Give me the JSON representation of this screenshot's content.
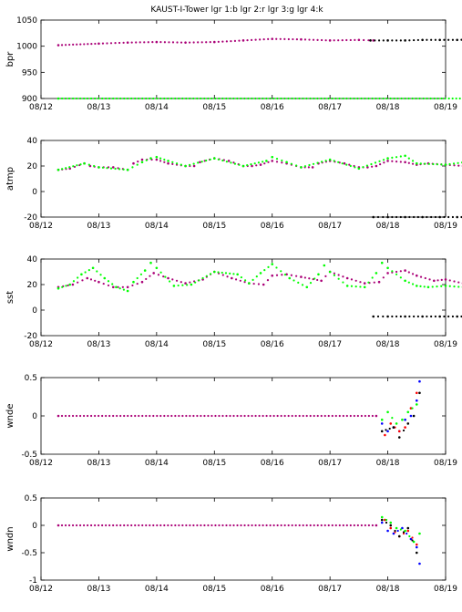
{
  "figure_title": "KAUST-I-Tower  lgr 1:b lgr 2:r lgr 3:g lgr 4:k",
  "logger_colors": {
    "b": "#0000ff",
    "r": "#ff0000",
    "g": "#00ff00",
    "k": "#000000",
    "m": "#aa0077"
  },
  "chart_data": [
    {
      "type": "scatter",
      "ylabel": "bpr",
      "xlim": [
        "08/12",
        "08/19"
      ],
      "ylim": [
        900,
        1050
      ],
      "xticks": [
        "08/12",
        "08/13",
        "08/14",
        "08/15",
        "08/16",
        "08/17",
        "08/18",
        "08/19"
      ],
      "yticks": [
        900,
        950,
        1000,
        1050
      ],
      "series": [
        {
          "color": "m",
          "x": [
            0.3,
            1.0,
            1.5,
            2.0,
            2.5,
            3.0,
            3.5,
            4.0,
            4.5,
            5.0,
            5.5,
            5.75
          ],
          "y": [
            1002,
            1005,
            1007,
            1008,
            1007,
            1008,
            1011,
            1014,
            1013,
            1011,
            1012,
            1011
          ]
        },
        {
          "color": "k",
          "x": [
            5.7,
            6.0,
            6.3,
            6.6,
            6.9,
            7.2,
            7.5
          ],
          "y": [
            1011,
            1011,
            1011,
            1012,
            1012,
            1012,
            1013
          ]
        },
        {
          "color": "g",
          "x": [
            0.3,
            7.5
          ],
          "y": [
            900,
            900
          ]
        }
      ]
    },
    {
      "type": "scatter",
      "ylabel": "atmp",
      "xlim": [
        "08/12",
        "08/19"
      ],
      "ylim": [
        -20,
        40
      ],
      "xticks": [
        "08/12",
        "08/13",
        "08/14",
        "08/15",
        "08/16",
        "08/17",
        "08/18",
        "08/19"
      ],
      "yticks": [
        -20,
        0,
        20,
        40
      ],
      "series": [
        {
          "color": "m",
          "x": [
            0.3,
            0.5,
            0.75,
            0.85,
            1.0,
            1.25,
            1.5,
            1.6,
            1.75,
            2.0,
            2.2,
            2.5,
            2.65,
            2.75,
            3.0,
            3.25,
            3.5,
            3.65,
            3.8,
            4.0,
            4.25,
            4.5,
            4.7,
            4.8,
            5.0,
            5.25,
            5.5,
            5.65,
            5.8,
            6.0,
            6.3,
            6.5,
            6.7,
            7.0,
            7.3,
            7.5
          ],
          "y": [
            17,
            18,
            22,
            20,
            19,
            19,
            17,
            22,
            25,
            25,
            22,
            20,
            20,
            23,
            26,
            24,
            20,
            20,
            21,
            24,
            22,
            19,
            19,
            22,
            24,
            22,
            19,
            19,
            20,
            24,
            23,
            21,
            22,
            21,
            20,
            23
          ]
        },
        {
          "color": "g",
          "x": [
            0.3,
            0.75,
            1.0,
            1.5,
            1.75,
            1.9,
            2.0,
            2.2,
            2.5,
            3.0,
            3.5,
            3.9,
            4.0,
            4.25,
            4.5,
            5.0,
            5.5,
            6.0,
            6.3,
            6.5,
            7.0,
            7.5
          ],
          "y": [
            17,
            22,
            19,
            17,
            23,
            26,
            27,
            24,
            20,
            26,
            20,
            24,
            27,
            23,
            19,
            25,
            18,
            26,
            28,
            22,
            21,
            24
          ]
        },
        {
          "color": "k",
          "x": [
            5.75,
            6.0,
            6.3,
            6.6,
            6.9,
            7.2,
            7.5
          ],
          "y": [
            -20,
            -20,
            -20,
            -20,
            -20,
            -20,
            -20
          ]
        }
      ]
    },
    {
      "type": "scatter",
      "ylabel": "sst",
      "xlim": [
        "08/12",
        "08/19"
      ],
      "ylim": [
        -20,
        40
      ],
      "xticks": [
        "08/12",
        "08/13",
        "08/14",
        "08/15",
        "08/16",
        "08/17",
        "08/18",
        "08/19"
      ],
      "yticks": [
        -20,
        0,
        20,
        40
      ],
      "series": [
        {
          "color": "m",
          "x": [
            0.3,
            0.55,
            0.8,
            1.0,
            1.25,
            1.5,
            1.75,
            1.95,
            2.2,
            2.5,
            2.8,
            3.0,
            3.3,
            3.6,
            3.85,
            4.0,
            4.25,
            4.5,
            4.85,
            5.0,
            5.3,
            5.6,
            5.85,
            6.0,
            6.3,
            6.5,
            6.8,
            7.0,
            7.3,
            7.5
          ],
          "y": [
            18,
            20,
            25,
            22,
            18,
            18,
            22,
            29,
            25,
            21,
            24,
            30,
            25,
            21,
            20,
            27,
            28,
            26,
            23,
            30,
            25,
            21,
            22,
            29,
            31,
            27,
            23,
            24,
            21,
            22
          ]
        },
        {
          "color": "g",
          "x": [
            0.3,
            0.5,
            0.7,
            0.9,
            1.1,
            1.3,
            1.5,
            1.6,
            1.8,
            1.9,
            2.0,
            2.3,
            2.6,
            3.0,
            3.4,
            3.6,
            3.8,
            4.0,
            4.3,
            4.6,
            4.8,
            4.9,
            5.0,
            5.3,
            5.6,
            5.8,
            5.9,
            6.0,
            6.3,
            6.5,
            6.7,
            7.0,
            7.3,
            7.5
          ],
          "y": [
            17,
            20,
            28,
            33,
            25,
            18,
            15,
            22,
            31,
            37,
            33,
            19,
            20,
            30,
            28,
            21,
            29,
            36,
            25,
            18,
            28,
            35,
            30,
            19,
            18,
            29,
            37,
            33,
            23,
            19,
            18,
            19,
            18,
            22
          ]
        },
        {
          "color": "k",
          "x": [
            5.75,
            6.0,
            6.3,
            6.6,
            6.9,
            7.2,
            7.5
          ],
          "y": [
            -5,
            -5,
            -5,
            -5,
            -5,
            -5,
            -5
          ]
        }
      ]
    },
    {
      "type": "scatter",
      "ylabel": "wnde",
      "xlim": [
        "08/12",
        "08/19"
      ],
      "ylim": [
        -0.5,
        0.5
      ],
      "xticks": [
        "08/12",
        "08/13",
        "08/14",
        "08/15",
        "08/16",
        "08/17",
        "08/18",
        "08/19"
      ],
      "yticks": [
        -0.5,
        0,
        0.5
      ],
      "series": [
        {
          "color": "m",
          "x": [
            0.3,
            5.8
          ],
          "y": [
            0,
            0
          ]
        },
        {
          "color": "b",
          "x": [
            5.9,
            6.0,
            6.1,
            6.2,
            6.3,
            6.4,
            6.5,
            6.55
          ],
          "y": [
            -0.1,
            -0.2,
            -0.15,
            -0.2,
            -0.05,
            0,
            0.2,
            0.45
          ]
        },
        {
          "color": "r",
          "x": [
            5.95,
            6.05,
            6.2,
            6.3,
            6.4,
            6.5
          ],
          "y": [
            -0.25,
            -0.1,
            -0.2,
            -0.15,
            0.1,
            0.3
          ]
        },
        {
          "color": "g",
          "x": [
            5.9,
            6.0,
            6.15,
            6.25,
            6.35,
            6.5
          ],
          "y": [
            -0.05,
            0.05,
            -0.1,
            -0.05,
            0.05,
            0.15
          ]
        },
        {
          "color": "k",
          "x": [
            5.9,
            6.1,
            6.2,
            6.35,
            6.45,
            6.55
          ],
          "y": [
            -0.2,
            -0.15,
            -0.28,
            -0.1,
            0.0,
            0.3
          ]
        }
      ]
    },
    {
      "type": "scatter",
      "ylabel": "wndn",
      "xlim": [
        "08/12",
        "08/19"
      ],
      "ylim": [
        -1,
        0.5
      ],
      "xticks": [
        "08/12",
        "08/13",
        "08/14",
        "08/15",
        "08/16",
        "08/17",
        "08/18",
        "08/19"
      ],
      "yticks": [
        -1,
        -0.5,
        0,
        0.5
      ],
      "series": [
        {
          "color": "m",
          "x": [
            0.3,
            5.8
          ],
          "y": [
            0,
            0
          ]
        },
        {
          "color": "b",
          "x": [
            5.9,
            6.0,
            6.1,
            6.25,
            6.4,
            6.5,
            6.55
          ],
          "y": [
            0.05,
            -0.1,
            -0.15,
            -0.05,
            -0.25,
            -0.4,
            -0.7
          ]
        },
        {
          "color": "r",
          "x": [
            5.95,
            6.05,
            6.2,
            6.35,
            6.5
          ],
          "y": [
            0.1,
            -0.05,
            -0.2,
            -0.1,
            -0.35
          ]
        },
        {
          "color": "g",
          "x": [
            5.9,
            6.05,
            6.15,
            6.3,
            6.45,
            6.55
          ],
          "y": [
            0.15,
            0.05,
            -0.05,
            -0.1,
            -0.3,
            -0.15
          ]
        },
        {
          "color": "k",
          "x": [
            5.9,
            6.05,
            6.2,
            6.35,
            6.5
          ],
          "y": [
            0.1,
            0.0,
            -0.2,
            -0.05,
            -0.5
          ]
        }
      ]
    }
  ]
}
